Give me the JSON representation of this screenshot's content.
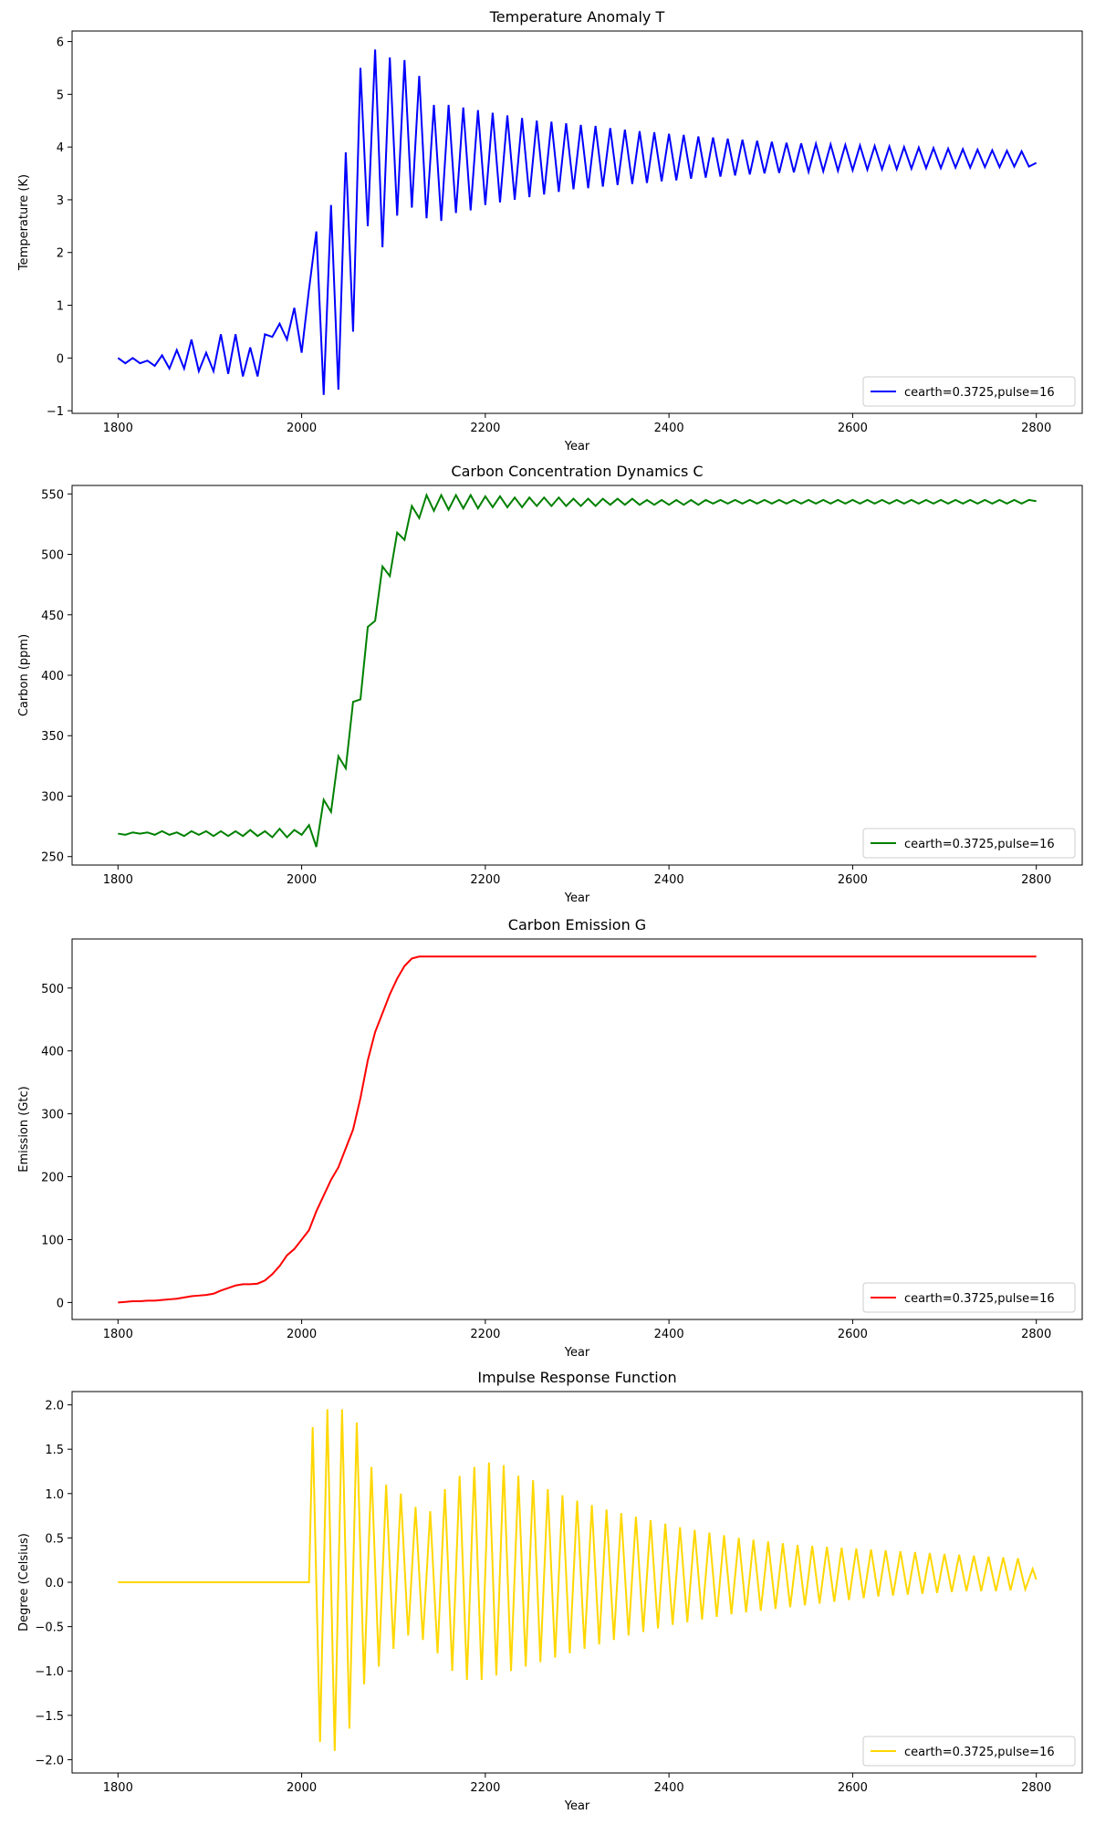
{
  "chart_data": [
    {
      "type": "line",
      "title": "Temperature Anomaly T",
      "xlabel": "Year",
      "ylabel": "Temperature (K)",
      "x": [
        1800,
        1808,
        1816,
        1824,
        1832,
        1840,
        1848,
        1856,
        1864,
        1872,
        1880,
        1888,
        1896,
        1904,
        1912,
        1920,
        1928,
        1936,
        1944,
        1952,
        1960,
        1968,
        1976,
        1984,
        1992,
        2000,
        2008,
        2016,
        2024,
        2032,
        2040,
        2048,
        2056,
        2064,
        2072,
        2080,
        2088,
        2096,
        2104,
        2112,
        2120,
        2128,
        2136,
        2144,
        2152,
        2160,
        2168,
        2176,
        2184,
        2192,
        2200,
        2208,
        2216,
        2224,
        2232,
        2240,
        2248,
        2256,
        2264,
        2272,
        2280,
        2288,
        2296,
        2304,
        2312,
        2320,
        2328,
        2336,
        2344,
        2352,
        2360,
        2368,
        2376,
        2384,
        2392,
        2400,
        2408,
        2416,
        2424,
        2432,
        2440,
        2448,
        2456,
        2464,
        2472,
        2480,
        2488,
        2496,
        2504,
        2512,
        2520,
        2528,
        2536,
        2544,
        2552,
        2560,
        2568,
        2576,
        2584,
        2592,
        2600,
        2608,
        2616,
        2624,
        2632,
        2640,
        2648,
        2656,
        2664,
        2672,
        2680,
        2688,
        2696,
        2704,
        2712,
        2720,
        2728,
        2736,
        2744,
        2752,
        2760,
        2768,
        2776,
        2784,
        2792,
        2800
      ],
      "series": [
        {
          "name": "cearth=0.3725,pulse=16",
          "color": "#0000ff",
          "values": [
            0,
            -0.1,
            0,
            -0.1,
            -0.05,
            -0.15,
            0.05,
            -0.2,
            0.15,
            -0.2,
            0.35,
            -0.25,
            0.1,
            -0.25,
            0.45,
            -0.3,
            0.45,
            -0.35,
            0.2,
            -0.35,
            0.45,
            0.4,
            0.65,
            0.35,
            0.95,
            0.1,
            1.3,
            2.4,
            -0.7,
            2.9,
            -0.6,
            3.9,
            0.5,
            5.5,
            2.5,
            5.85,
            2.1,
            5.7,
            2.7,
            5.65,
            2.85,
            5.35,
            2.65,
            4.8,
            2.6,
            4.8,
            2.75,
            4.75,
            2.8,
            4.7,
            2.9,
            4.65,
            2.95,
            4.6,
            3.0,
            4.55,
            3.05,
            4.5,
            3.1,
            4.48,
            3.15,
            4.45,
            3.2,
            4.42,
            3.22,
            4.4,
            3.25,
            4.36,
            3.28,
            4.33,
            3.3,
            4.3,
            3.32,
            4.28,
            3.35,
            4.25,
            3.37,
            4.23,
            3.4,
            4.2,
            3.42,
            4.18,
            3.44,
            4.16,
            3.46,
            4.14,
            3.48,
            4.12,
            3.5,
            4.1,
            3.51,
            4.08,
            3.52,
            4.07,
            3.53,
            4.06,
            3.54,
            4.05,
            3.55,
            4.04,
            3.56,
            4.03,
            3.57,
            4.02,
            3.58,
            4.01,
            3.58,
            4.0,
            3.59,
            3.99,
            3.6,
            3.98,
            3.6,
            3.97,
            3.61,
            3.96,
            3.61,
            3.95,
            3.62,
            3.94,
            3.62,
            3.93,
            3.63,
            3.92,
            3.63,
            3.7
          ]
        }
      ],
      "xlim": [
        1750,
        2850
      ],
      "xticks": [
        1800,
        2000,
        2200,
        2400,
        2600,
        2800
      ],
      "ylim": [
        -1.05,
        6.2
      ],
      "yticks": [
        {
          "value": -1,
          "label": "−1"
        },
        0,
        1,
        2,
        3,
        4,
        5,
        6
      ],
      "legend": "lower right"
    },
    {
      "type": "line",
      "title": "Carbon Concentration Dynamics C",
      "xlabel": "Year",
      "ylabel": "Carbon (ppm)",
      "x": [
        1800,
        1808,
        1816,
        1824,
        1832,
        1840,
        1848,
        1856,
        1864,
        1872,
        1880,
        1888,
        1896,
        1904,
        1912,
        1920,
        1928,
        1936,
        1944,
        1952,
        1960,
        1968,
        1976,
        1984,
        1992,
        2000,
        2008,
        2016,
        2024,
        2032,
        2040,
        2048,
        2056,
        2064,
        2072,
        2080,
        2088,
        2096,
        2104,
        2112,
        2120,
        2128,
        2136,
        2144,
        2152,
        2160,
        2168,
        2176,
        2184,
        2192,
        2200,
        2208,
        2216,
        2224,
        2232,
        2240,
        2248,
        2256,
        2264,
        2272,
        2280,
        2288,
        2296,
        2304,
        2312,
        2320,
        2328,
        2336,
        2344,
        2352,
        2360,
        2368,
        2376,
        2384,
        2392,
        2400,
        2408,
        2416,
        2424,
        2432,
        2440,
        2448,
        2456,
        2464,
        2472,
        2480,
        2488,
        2496,
        2504,
        2512,
        2520,
        2528,
        2536,
        2544,
        2552,
        2560,
        2568,
        2576,
        2584,
        2592,
        2600,
        2608,
        2616,
        2624,
        2632,
        2640,
        2648,
        2656,
        2664,
        2672,
        2680,
        2688,
        2696,
        2704,
        2712,
        2720,
        2728,
        2736,
        2744,
        2752,
        2760,
        2768,
        2776,
        2784,
        2792,
        2800
      ],
      "series": [
        {
          "name": "cearth=0.3725,pulse=16",
          "color": "#008000",
          "values": [
            269,
            268,
            270,
            269,
            270,
            268,
            271,
            268,
            270,
            267,
            271,
            268,
            271,
            267,
            271,
            267,
            271,
            267,
            272,
            267,
            271,
            266,
            273,
            266,
            272,
            268,
            276,
            258,
            297,
            287,
            333,
            323,
            378,
            380,
            440,
            445,
            490,
            482,
            518,
            512,
            540,
            530,
            549,
            536,
            549,
            537,
            549,
            538,
            549,
            538,
            548,
            539,
            548,
            539,
            547,
            539,
            547,
            540,
            547,
            540,
            547,
            540,
            546,
            540,
            546,
            540,
            546,
            541,
            546,
            541,
            546,
            541,
            545,
            541,
            545,
            541,
            545,
            541,
            545,
            541,
            545,
            542,
            545,
            542,
            545,
            542,
            545,
            542,
            545,
            542,
            545,
            542,
            545,
            542,
            545,
            542,
            545,
            542,
            545,
            542,
            545,
            542,
            545,
            542,
            545,
            542,
            545,
            542,
            545,
            542,
            545,
            542,
            545,
            542,
            545,
            542,
            545,
            542,
            545,
            542,
            545,
            542,
            545,
            542,
            545,
            544
          ]
        }
      ],
      "xlim": [
        1750,
        2850
      ],
      "xticks": [
        1800,
        2000,
        2200,
        2400,
        2600,
        2800
      ],
      "ylim": [
        243,
        557
      ],
      "yticks": [
        250,
        300,
        350,
        400,
        450,
        500,
        550
      ],
      "legend": "lower right"
    },
    {
      "type": "line",
      "title": "Carbon Emission G",
      "xlabel": "Year",
      "ylabel": "Emission (Gtc)",
      "x": [
        1800,
        1808,
        1816,
        1824,
        1832,
        1840,
        1848,
        1856,
        1864,
        1872,
        1880,
        1888,
        1896,
        1904,
        1912,
        1920,
        1928,
        1936,
        1944,
        1952,
        1960,
        1968,
        1976,
        1984,
        1992,
        2000,
        2008,
        2016,
        2024,
        2032,
        2040,
        2048,
        2056,
        2064,
        2072,
        2080,
        2088,
        2096,
        2104,
        2112,
        2120,
        2128,
        2800
      ],
      "series": [
        {
          "name": "cearth=0.3725,pulse=16",
          "color": "#ff0000",
          "values": [
            0,
            1,
            2,
            2,
            3,
            3,
            4,
            5,
            6,
            8,
            10,
            11,
            12,
            14,
            19,
            23,
            27,
            29,
            29,
            30,
            35,
            45,
            58,
            75,
            85,
            100,
            115,
            145,
            170,
            195,
            215,
            245,
            275,
            325,
            385,
            430,
            460,
            490,
            515,
            535,
            547,
            550,
            550
          ]
        }
      ],
      "xlim": [
        1750,
        2850
      ],
      "xticks": [
        1800,
        2000,
        2200,
        2400,
        2600,
        2800
      ],
      "ylim": [
        -27,
        578
      ],
      "yticks": [
        0,
        100,
        200,
        300,
        400,
        500
      ],
      "legend": "lower right"
    },
    {
      "type": "line",
      "title": "Impulse Response Function",
      "xlabel": "Year",
      "ylabel": "Degree (Celsius)",
      "x": [
        1800,
        2008,
        2012,
        2020,
        2028,
        2036,
        2044,
        2052,
        2060,
        2068,
        2076,
        2084,
        2092,
        2100,
        2108,
        2116,
        2124,
        2132,
        2140,
        2148,
        2156,
        2164,
        2172,
        2180,
        2188,
        2196,
        2204,
        2212,
        2220,
        2228,
        2236,
        2244,
        2252,
        2260,
        2268,
        2276,
        2284,
        2292,
        2300,
        2308,
        2316,
        2324,
        2332,
        2340,
        2348,
        2356,
        2364,
        2372,
        2380,
        2388,
        2396,
        2404,
        2412,
        2420,
        2428,
        2436,
        2444,
        2452,
        2460,
        2468,
        2476,
        2484,
        2492,
        2500,
        2508,
        2516,
        2524,
        2532,
        2540,
        2548,
        2556,
        2564,
        2572,
        2580,
        2588,
        2596,
        2604,
        2612,
        2620,
        2628,
        2636,
        2644,
        2652,
        2660,
        2668,
        2676,
        2684,
        2692,
        2700,
        2708,
        2716,
        2724,
        2732,
        2740,
        2748,
        2756,
        2764,
        2772,
        2780,
        2788,
        2796,
        2800
      ],
      "series": [
        {
          "name": "cearth=0.3725,pulse=16",
          "color": "#ffd700",
          "values": [
            0,
            0,
            1.75,
            -1.8,
            1.95,
            -1.9,
            1.95,
            -1.65,
            1.8,
            -1.15,
            1.3,
            -0.95,
            1.1,
            -0.75,
            1.0,
            -0.6,
            0.85,
            -0.65,
            0.8,
            -0.8,
            1.05,
            -1.0,
            1.2,
            -1.1,
            1.3,
            -1.1,
            1.35,
            -1.05,
            1.32,
            -1.0,
            1.2,
            -0.95,
            1.15,
            -0.9,
            1.05,
            -0.85,
            0.98,
            -0.8,
            0.92,
            -0.75,
            0.87,
            -0.7,
            0.82,
            -0.65,
            0.78,
            -0.6,
            0.74,
            -0.56,
            0.7,
            -0.52,
            0.66,
            -0.48,
            0.62,
            -0.45,
            0.59,
            -0.42,
            0.56,
            -0.39,
            0.53,
            -0.36,
            0.5,
            -0.34,
            0.48,
            -0.32,
            0.46,
            -0.3,
            0.44,
            -0.28,
            0.42,
            -0.26,
            0.41,
            -0.24,
            0.4,
            -0.22,
            0.39,
            -0.2,
            0.38,
            -0.18,
            0.37,
            -0.16,
            0.36,
            -0.15,
            0.35,
            -0.14,
            0.34,
            -0.13,
            0.33,
            -0.12,
            0.32,
            -0.11,
            0.31,
            -0.1,
            0.3,
            -0.1,
            0.29,
            -0.1,
            0.28,
            -0.09,
            0.27,
            -0.08,
            0.15,
            0.03
          ]
        }
      ],
      "xlim": [
        1750,
        2850
      ],
      "xticks": [
        1800,
        2000,
        2200,
        2400,
        2600,
        2800
      ],
      "ylim": [
        -2.15,
        2.15
      ],
      "yticks": [
        {
          "value": -2,
          "label": "−2.0"
        },
        {
          "value": -1.5,
          "label": "−1.5"
        },
        {
          "value": -1,
          "label": "−1.0"
        },
        {
          "value": -0.5,
          "label": "−0.5"
        },
        {
          "value": 0,
          "label": "0.0"
        },
        0.5,
        {
          "value": 1,
          "label": "1.0"
        },
        1.5,
        {
          "value": 2,
          "label": "2.0"
        }
      ],
      "legend": "lower right"
    }
  ]
}
